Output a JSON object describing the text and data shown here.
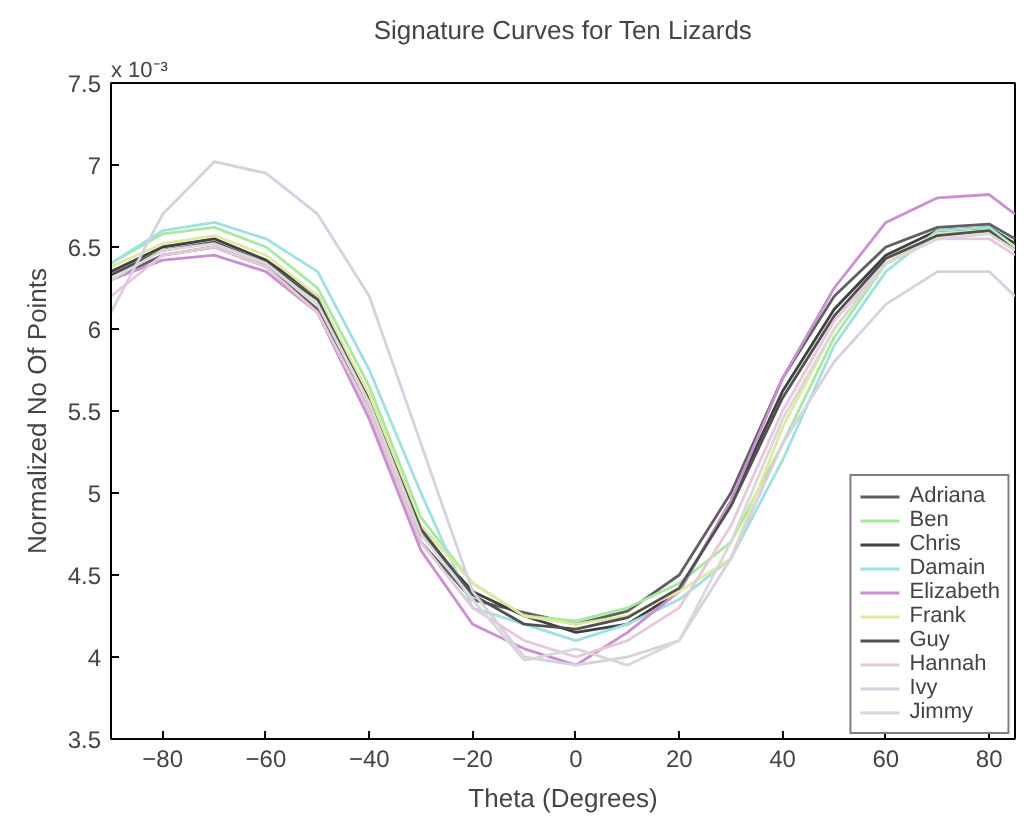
{
  "chart_data": {
    "type": "line",
    "title": "Signature Curves for Ten Lizards",
    "xlabel": "Theta (Degrees)",
    "ylabel": "Normalized No Of Points",
    "annotations": [
      "x 10⁻³"
    ],
    "x": [
      -90,
      -80,
      -70,
      -60,
      -50,
      -40,
      -30,
      -20,
      -10,
      0,
      10,
      20,
      30,
      40,
      50,
      60,
      70,
      80,
      85
    ],
    "series": [
      {
        "name": "Adriana",
        "color": "#606060",
        "values": [
          6.3,
          6.45,
          6.5,
          6.38,
          6.12,
          5.5,
          4.7,
          4.35,
          4.27,
          4.2,
          4.28,
          4.5,
          5.0,
          5.7,
          6.2,
          6.5,
          6.62,
          6.64,
          6.55
        ]
      },
      {
        "name": "Ben",
        "color": "#a8e8a0",
        "values": [
          6.4,
          6.58,
          6.62,
          6.5,
          6.25,
          5.65,
          4.85,
          4.45,
          4.25,
          4.22,
          4.3,
          4.45,
          4.7,
          5.3,
          5.95,
          6.4,
          6.58,
          6.6,
          6.5
        ]
      },
      {
        "name": "Chris",
        "color": "#404040",
        "values": [
          6.35,
          6.5,
          6.55,
          6.42,
          6.2,
          5.58,
          4.75,
          4.4,
          4.25,
          4.15,
          4.2,
          4.4,
          4.95,
          5.62,
          6.12,
          6.45,
          6.6,
          6.62,
          6.52
        ]
      },
      {
        "name": "Damain",
        "color": "#a0e0e0",
        "values": [
          6.4,
          6.6,
          6.65,
          6.55,
          6.35,
          5.75,
          5.0,
          4.3,
          4.2,
          4.1,
          4.2,
          4.35,
          4.6,
          5.2,
          5.9,
          6.35,
          6.6,
          6.62,
          6.5
        ]
      },
      {
        "name": "Elizabeth",
        "color": "#c890d0",
        "values": [
          6.3,
          6.42,
          6.45,
          6.35,
          6.1,
          5.45,
          4.65,
          4.2,
          4.05,
          3.95,
          4.15,
          4.4,
          4.95,
          5.7,
          6.25,
          6.65,
          6.8,
          6.82,
          6.7
        ]
      },
      {
        "name": "Frank",
        "color": "#e0e8a0",
        "values": [
          6.38,
          6.52,
          6.57,
          6.45,
          6.2,
          5.6,
          4.8,
          4.45,
          4.25,
          4.2,
          4.25,
          4.4,
          4.6,
          5.4,
          6.0,
          6.4,
          6.58,
          6.6,
          6.5
        ]
      },
      {
        "name": "Guy",
        "color": "#505050",
        "values": [
          6.33,
          6.48,
          6.53,
          6.4,
          6.18,
          5.55,
          4.78,
          4.38,
          4.2,
          4.17,
          4.24,
          4.42,
          4.92,
          5.58,
          6.08,
          6.43,
          6.57,
          6.6,
          6.48
        ]
      },
      {
        "name": "Hannah",
        "color": "#e8c8d8",
        "values": [
          6.2,
          6.45,
          6.5,
          6.38,
          6.1,
          5.5,
          4.7,
          4.3,
          4.1,
          4.0,
          4.1,
          4.3,
          4.8,
          5.5,
          6.05,
          6.4,
          6.55,
          6.55,
          6.45
        ]
      },
      {
        "name": "Ivy",
        "color": "#d8d0e0",
        "values": [
          6.1,
          6.7,
          7.02,
          6.95,
          6.7,
          6.2,
          5.3,
          4.4,
          4.0,
          3.95,
          4.0,
          4.1,
          4.6,
          5.3,
          5.8,
          6.15,
          6.35,
          6.35,
          6.2
        ]
      },
      {
        "name": "Jimmy",
        "color": "#d8d8d8",
        "values": [
          6.3,
          6.48,
          6.52,
          6.4,
          6.15,
          5.55,
          4.75,
          4.35,
          3.98,
          4.05,
          3.95,
          4.1,
          4.7,
          5.45,
          6.0,
          6.4,
          6.55,
          6.58,
          6.48
        ]
      }
    ],
    "xlim": [
      -90,
      85
    ],
    "ylim": [
      3.5,
      7.5
    ],
    "xticks": [
      -80,
      -60,
      -40,
      -20,
      0,
      20,
      40,
      60,
      80
    ],
    "yticks": [
      3.5,
      4,
      4.5,
      5,
      5.5,
      6,
      6.5,
      7,
      7.5
    ],
    "legend": "bottom right",
    "grid": false,
    "marker": "none",
    "line_style": "solid"
  }
}
